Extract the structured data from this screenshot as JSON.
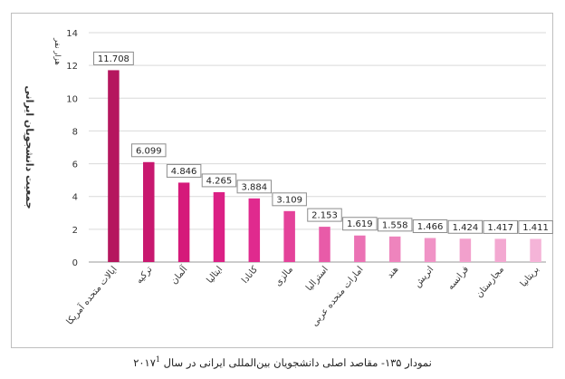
{
  "chart_data": {
    "type": "bar",
    "ylabel": "جمعیت دانشجویان ایرانی",
    "unit_label": "هزار نفر",
    "ylim": [
      0,
      14
    ],
    "yticks": [
      0,
      2,
      4,
      6,
      8,
      10,
      12,
      14
    ],
    "grid": true,
    "categories": [
      "ایالات متحده آمریکا",
      "ترکیه",
      "آلمان",
      "ایتالیا",
      "کانادا",
      "مالزی",
      "استرالیا",
      "امارات متحده عربی",
      "هند",
      "اتریش",
      "فرانسه",
      "مجارستان",
      "بریتانیا"
    ],
    "values": [
      11.708,
      6.099,
      4.846,
      4.265,
      3.884,
      3.109,
      2.153,
      1.619,
      1.558,
      1.466,
      1.424,
      1.417,
      1.411
    ],
    "value_labels": [
      "11.708",
      "6.099",
      "4.846",
      "4.265",
      "3.884",
      "3.109",
      "2.153",
      "1.619",
      "1.558",
      "1.466",
      "1.424",
      "1.417",
      "1.411"
    ],
    "colors": [
      "#b5165e",
      "#c8186f",
      "#d5197a",
      "#db2085",
      "#e02a8e",
      "#e4429a",
      "#e85ba8",
      "#eb72b4",
      "#ee84bd",
      "#f093c6",
      "#f2a0cc",
      "#f3a8d1",
      "#f5b4d8"
    ]
  },
  "caption": {
    "text": "نمودار ۱۳۵- مقاصد اصلی دانشجویان بین‌المللی ایرانی در سال ۲۰۱۷",
    "footnote": "1"
  }
}
